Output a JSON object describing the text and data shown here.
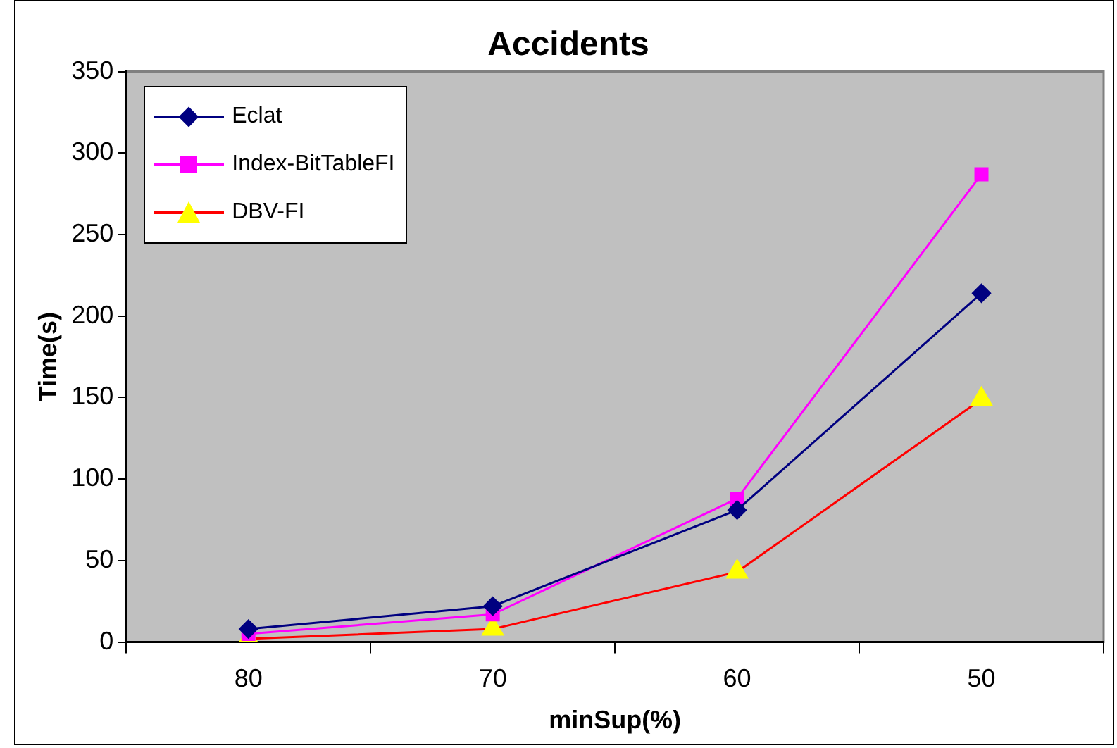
{
  "chart_data": {
    "type": "line",
    "title": "Accidents",
    "xlabel": "minSup(%)",
    "ylabel": "Time(s)",
    "categories": [
      "80",
      "70",
      "60",
      "50"
    ],
    "series": [
      {
        "name": "Eclat",
        "color": "#000080",
        "marker": "diamond",
        "values": [
          8,
          22,
          81,
          214
        ]
      },
      {
        "name": "Index-BitTableFI",
        "color": "#ff00ff",
        "marker": "square",
        "values": [
          5,
          17,
          88,
          287
        ]
      },
      {
        "name": "DBV-FI",
        "color": "#ff0000",
        "marker": "triangle",
        "colors": [
          "#ffff00",
          "#ffff00",
          "#ffff00",
          "#ffff00"
        ],
        "values": [
          2,
          8,
          43,
          149
        ]
      }
    ],
    "ylim": [
      0,
      350
    ],
    "yticks": [
      0,
      50,
      100,
      150,
      200,
      250,
      300,
      350
    ],
    "grid": false,
    "legend": "top left"
  }
}
